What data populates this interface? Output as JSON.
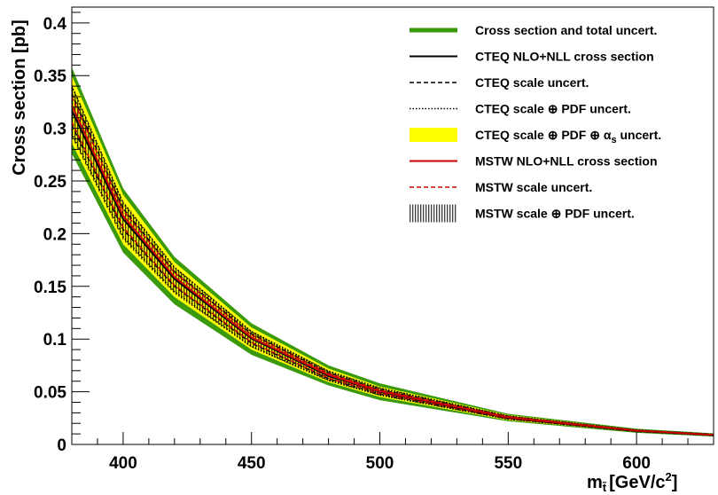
{
  "chart_data": {
    "type": "line",
    "ylabel": "Cross section [pb]",
    "xlabel": "m",
    "xlabel_subscript": "t̃",
    "xlabel_unit": "[GeV/c",
    "xlabel_unit_sup": "2",
    "xlabel_unit_close": "]",
    "xlim": [
      380,
      630
    ],
    "ylim": [
      0,
      0.415
    ],
    "xticks": [
      400,
      450,
      500,
      550,
      600
    ],
    "yticks": [
      0,
      0.05,
      0.1,
      0.15,
      0.2,
      0.25,
      0.3,
      0.35,
      0.4
    ],
    "ytick_labels": [
      "0",
      "0.05",
      "0.1",
      "0.15",
      "0.2",
      "0.25",
      "0.3",
      "0.35",
      "0.4"
    ],
    "legend_position": "top-right",
    "x": [
      380,
      400,
      420,
      450,
      480,
      500,
      550,
      600,
      630
    ],
    "series": [
      {
        "name": "Cross section and total uncert.",
        "style": "green-band",
        "lower": [
          0.276,
          0.182,
          0.133,
          0.085,
          0.056,
          0.042,
          0.022,
          0.011,
          0.0075
        ],
        "upper": [
          0.358,
          0.243,
          0.178,
          0.115,
          0.075,
          0.058,
          0.029,
          0.015,
          0.0105
        ]
      },
      {
        "name": "CTEQ scale ⊕ PDF ⊕ αs uncert.",
        "style": "yellow-band",
        "lower": [
          0.286,
          0.19,
          0.14,
          0.09,
          0.059,
          0.045,
          0.023,
          0.012,
          0.0082
        ],
        "upper": [
          0.35,
          0.237,
          0.173,
          0.111,
          0.072,
          0.055,
          0.028,
          0.014,
          0.01
        ]
      },
      {
        "name": "MSTW scale ⊕ PDF uncert.",
        "style": "hatched-band",
        "lower": [
          0.292,
          0.194,
          0.143,
          0.092,
          0.06,
          0.046,
          0.0235,
          0.0122,
          0.0084
        ],
        "upper": [
          0.342,
          0.231,
          0.169,
          0.108,
          0.07,
          0.054,
          0.0275,
          0.0138,
          0.0097
        ]
      },
      {
        "name": "CTEQ scale uncert.",
        "style": "black-dashed",
        "lower": [
          0.303,
          0.204,
          0.15,
          0.096,
          0.0625,
          0.048,
          0.0245,
          0.0125,
          0.0087
        ],
        "upper": [
          0.333,
          0.224,
          0.164,
          0.105,
          0.068,
          0.052,
          0.0265,
          0.0134,
          0.0094
        ]
      },
      {
        "name": "CTEQ scale ⊕ PDF uncert.",
        "style": "black-dotted",
        "lower": [
          0.295,
          0.197,
          0.145,
          0.093,
          0.061,
          0.047,
          0.024,
          0.0123,
          0.0085
        ],
        "upper": [
          0.34,
          0.229,
          0.168,
          0.107,
          0.0695,
          0.0535,
          0.027,
          0.0137,
          0.0096
        ]
      },
      {
        "name": "MSTW scale uncert.",
        "style": "red-dashed",
        "lower": [
          0.306,
          0.206,
          0.151,
          0.097,
          0.063,
          0.0485,
          0.0247,
          0.0126,
          0.0088
        ],
        "upper": [
          0.33,
          0.222,
          0.163,
          0.104,
          0.0675,
          0.0515,
          0.0263,
          0.0133,
          0.0093
        ]
      },
      {
        "name": "CTEQ NLO+NLL cross section",
        "style": "black-solid",
        "values": [
          0.317,
          0.214,
          0.157,
          0.1005,
          0.065,
          0.05,
          0.0255,
          0.013,
          0.009
        ]
      },
      {
        "name": "MSTW NLO+NLL cross section",
        "style": "red-solid",
        "values": [
          0.322,
          0.217,
          0.159,
          0.1015,
          0.066,
          0.0505,
          0.0258,
          0.0131,
          0.0091
        ]
      }
    ],
    "legend": [
      {
        "label": "Cross section and total uncert.",
        "symbol": "green-line"
      },
      {
        "label": "CTEQ NLO+NLL cross section",
        "symbol": "black-solid"
      },
      {
        "label": "CTEQ scale uncert.",
        "symbol": "black-dashed"
      },
      {
        "label": "CTEQ scale ⊕ PDF uncert.",
        "symbol": "black-dotted"
      },
      {
        "label": "CTEQ scale ⊕ PDF ⊕ α",
        "label_sub": "s",
        "label_after": " uncert.",
        "symbol": "yellow-box"
      },
      {
        "label": "MSTW NLO+NLL cross section",
        "symbol": "red-solid"
      },
      {
        "label": "MSTW scale uncert.",
        "symbol": "red-dashed"
      },
      {
        "label": "MSTW scale ⊕ PDF uncert.",
        "symbol": "hatch-box"
      }
    ],
    "colors": {
      "green": "#3a9a0c",
      "yellow": "#ffff00",
      "black": "#000000",
      "red": "#cc0000"
    }
  }
}
